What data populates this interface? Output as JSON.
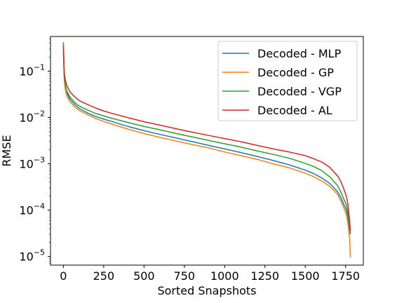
{
  "chart_data": {
    "type": "line",
    "title": "",
    "xlabel": "Sorted Snapshots",
    "ylabel": "RMSE",
    "xlim": [
      -80,
      1860
    ],
    "ylim": [
      6.5e-06,
      0.56
    ],
    "yscale": "log",
    "grid": false,
    "legend_position": "top-right",
    "x_ticks": [
      0,
      250,
      500,
      750,
      1000,
      1250,
      1500,
      1750
    ],
    "x_tick_labels": [
      "0",
      "250",
      "500",
      "750",
      "1000",
      "1250",
      "1500",
      "1750"
    ],
    "y_ticks": [
      1e-05,
      0.0001,
      0.001,
      0.01,
      0.1
    ],
    "y_tick_labels": [
      {
        "base": "10",
        "exp": "−5"
      },
      {
        "base": "10",
        "exp": "−4"
      },
      {
        "base": "10",
        "exp": "−3"
      },
      {
        "base": "10",
        "exp": "−2"
      },
      {
        "base": "10",
        "exp": "−1"
      }
    ],
    "series": [
      {
        "name": "Decoded - MLP",
        "color": "#1f77b4",
        "x": [
          0,
          5,
          10,
          20,
          40,
          70,
          100,
          150,
          200,
          250,
          300,
          400,
          500,
          600,
          700,
          800,
          900,
          1000,
          1100,
          1200,
          1300,
          1400,
          1500,
          1550,
          1600,
          1650,
          1700,
          1720,
          1740,
          1755,
          1765,
          1775,
          1780
        ],
        "y": [
          0.3,
          0.08,
          0.05,
          0.035,
          0.025,
          0.019,
          0.0155,
          0.0125,
          0.0105,
          0.0092,
          0.0082,
          0.0064,
          0.0052,
          0.0043,
          0.0036,
          0.003,
          0.0025,
          0.0021,
          0.00175,
          0.00145,
          0.00118,
          0.00095,
          0.00073,
          0.00062,
          0.0005,
          0.00038,
          0.00025,
          0.00019,
          0.00013,
          0.0001,
          7e-05,
          4e-05,
          3e-05
        ]
      },
      {
        "name": "Decoded - GP",
        "color": "#ff7f0e",
        "x": [
          0,
          5,
          10,
          20,
          40,
          70,
          100,
          150,
          200,
          250,
          300,
          400,
          500,
          600,
          700,
          800,
          900,
          1000,
          1100,
          1200,
          1300,
          1400,
          1500,
          1550,
          1600,
          1650,
          1700,
          1720,
          1740,
          1755,
          1765,
          1775,
          1780
        ],
        "y": [
          0.25,
          0.07,
          0.045,
          0.03,
          0.022,
          0.017,
          0.014,
          0.0115,
          0.0095,
          0.0082,
          0.0072,
          0.0056,
          0.0045,
          0.0037,
          0.0031,
          0.0026,
          0.0022,
          0.0018,
          0.0015,
          0.00125,
          0.001,
          0.00082,
          0.00063,
          0.00053,
          0.00043,
          0.00033,
          0.00022,
          0.00016,
          0.00011,
          8e-05,
          5e-05,
          2.5e-05,
          9.5e-06
        ]
      },
      {
        "name": "Decoded - VGP",
        "color": "#2ca02c",
        "x": [
          0,
          5,
          10,
          20,
          40,
          70,
          100,
          150,
          200,
          250,
          300,
          400,
          500,
          600,
          700,
          800,
          900,
          1000,
          1100,
          1200,
          1300,
          1400,
          1500,
          1550,
          1600,
          1650,
          1700,
          1720,
          1740,
          1755,
          1765,
          1775,
          1780
        ],
        "y": [
          0.42,
          0.09,
          0.055,
          0.038,
          0.028,
          0.021,
          0.0175,
          0.0145,
          0.0122,
          0.0108,
          0.0096,
          0.0078,
          0.0064,
          0.0054,
          0.0045,
          0.0038,
          0.0032,
          0.0027,
          0.0023,
          0.0019,
          0.0016,
          0.00132,
          0.00102,
          0.00088,
          0.00072,
          0.00053,
          0.00034,
          0.00025,
          0.00017,
          0.00013,
          8.5e-05,
          5e-05,
          3.5e-05
        ]
      },
      {
        "name": "Decoded - AL",
        "color": "#d62728",
        "x": [
          0,
          5,
          10,
          20,
          40,
          70,
          100,
          150,
          200,
          250,
          300,
          400,
          500,
          600,
          700,
          800,
          900,
          1000,
          1100,
          1200,
          1300,
          1400,
          1500,
          1550,
          1600,
          1650,
          1700,
          1720,
          1740,
          1755,
          1765,
          1775,
          1780
        ],
        "y": [
          0.35,
          0.1,
          0.07,
          0.05,
          0.036,
          0.028,
          0.023,
          0.019,
          0.016,
          0.0138,
          0.0123,
          0.0099,
          0.0081,
          0.0068,
          0.0057,
          0.0048,
          0.0041,
          0.0035,
          0.003,
          0.0025,
          0.0021,
          0.0018,
          0.0015,
          0.0013,
          0.0011,
          0.00085,
          0.00055,
          0.00042,
          0.00028,
          0.0002,
          0.00013,
          6e-05,
          3.5e-05
        ]
      }
    ]
  }
}
